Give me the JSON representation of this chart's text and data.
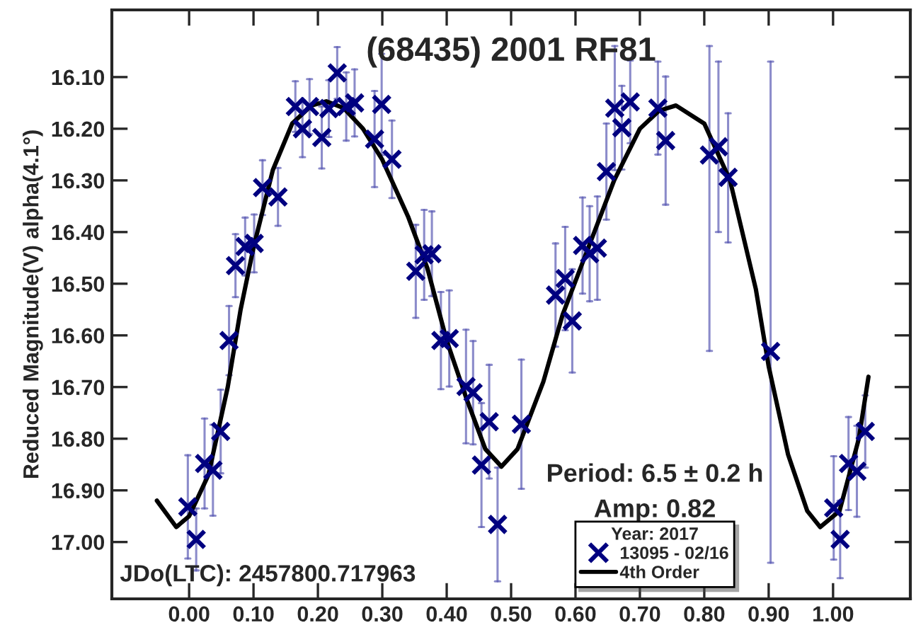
{
  "chart_data": {
    "type": "scatter",
    "title": "(68435) 2001 RF81",
    "ylabel": "Reduced Magnitude(V) alpha(4.1°)",
    "legend_title": "Year: 2017",
    "annotations": [
      "JDo(LTC): 2457800.717963",
      "Period: 6.5 ± 0.2 h",
      "Amp: 0.82"
    ],
    "xlim": [
      -0.12,
      1.12
    ],
    "ylim": [
      17.11,
      15.97
    ],
    "xticks": [
      {
        "value": 0,
        "label": "0.00"
      },
      {
        "value": 0.1,
        "label": "0.10"
      },
      {
        "value": 0.2,
        "label": "0.20"
      },
      {
        "value": 0.3,
        "label": "0.30"
      },
      {
        "value": 0.4,
        "label": "0.40"
      },
      {
        "value": 0.5,
        "label": "0.50"
      },
      {
        "value": 0.6,
        "label": "0.60"
      },
      {
        "value": 0.7,
        "label": "0.70"
      },
      {
        "value": 0.8,
        "label": "0.80"
      },
      {
        "value": 0.9,
        "label": "0.90"
      },
      {
        "value": 1.0,
        "label": "1.00"
      }
    ],
    "yticks": [
      {
        "value": 16.1,
        "label": "16.10"
      },
      {
        "value": 16.2,
        "label": "16.20"
      },
      {
        "value": 16.3,
        "label": "16.30"
      },
      {
        "value": 16.4,
        "label": "16.40"
      },
      {
        "value": 16.5,
        "label": "16.50"
      },
      {
        "value": 16.6,
        "label": "16.60"
      },
      {
        "value": 16.7,
        "label": "16.70"
      },
      {
        "value": 16.8,
        "label": "16.80"
      },
      {
        "value": 16.9,
        "label": "16.90"
      },
      {
        "value": 17.0,
        "label": "17.00"
      }
    ],
    "grid": false,
    "legend": "bottom",
    "series": [
      {
        "name": "13095 - 02/16",
        "color": "#000080",
        "marker": "cross",
        "x": [
          -0.002,
          0.011,
          0.024,
          0.037,
          0.049,
          0.062,
          0.072,
          0.087,
          0.101,
          0.114,
          0.138,
          0.165,
          0.176,
          0.187,
          0.206,
          0.217,
          0.23,
          0.244,
          0.257,
          0.288,
          0.299,
          0.315,
          0.352,
          0.365,
          0.377,
          0.391,
          0.404,
          0.43,
          0.441,
          0.454,
          0.466,
          0.479,
          0.516,
          0.569,
          0.584,
          0.595,
          0.611,
          0.622,
          0.634,
          0.648,
          0.661,
          0.672,
          0.685,
          0.728,
          0.74,
          0.808,
          0.822,
          0.837,
          0.903,
          1.001,
          1.011,
          1.024,
          1.037,
          1.05
        ],
        "values": [
          16.932,
          16.995,
          16.848,
          16.861,
          16.786,
          16.61,
          16.465,
          16.428,
          16.422,
          16.314,
          16.332,
          16.157,
          16.2,
          16.157,
          16.217,
          16.161,
          16.092,
          16.157,
          16.15,
          16.22,
          16.153,
          16.259,
          16.476,
          16.444,
          16.442,
          16.61,
          16.606,
          16.699,
          16.711,
          16.851,
          16.767,
          16.966,
          16.772,
          16.522,
          16.49,
          16.572,
          16.426,
          16.442,
          16.431,
          16.283,
          16.16,
          16.198,
          16.148,
          16.16,
          16.223,
          16.251,
          16.235,
          16.294,
          16.631,
          16.934,
          16.995,
          16.848,
          16.863,
          16.786
        ],
        "errors": [
          0.1,
          0.06,
          0.087,
          0.088,
          0.081,
          0.067,
          0.061,
          0.056,
          0.056,
          0.053,
          0.056,
          0.049,
          0.055,
          0.053,
          0.06,
          0.055,
          0.05,
          0.066,
          0.065,
          0.093,
          0.098,
          0.075,
          0.09,
          0.087,
          0.082,
          0.094,
          0.093,
          0.11,
          0.1,
          0.12,
          0.11,
          0.11,
          0.125,
          0.1,
          0.1,
          0.1,
          0.093,
          0.092,
          0.1,
          0.093,
          0.12,
          0.081,
          0.08,
          0.09,
          0.124,
          [
            16.04,
            16.63
          ],
          [
            16.07,
            16.4
          ],
          [
            16.17,
            16.42
          ],
          [
            16.07,
            17.04
          ],
          0.1,
          0.075,
          0.09,
          0.088,
          0.07
        ]
      },
      {
        "name": "4th Order",
        "type": "line",
        "color": "#000000",
        "marker": "none",
        "line_style": "solid",
        "x": [
          -0.05,
          -0.02,
          0.0,
          0.03,
          0.06,
          0.08,
          0.1,
          0.13,
          0.16,
          0.19,
          0.213,
          0.24,
          0.27,
          0.3,
          0.34,
          0.37,
          0.4,
          0.43,
          0.46,
          0.485,
          0.51,
          0.55,
          0.58,
          0.62,
          0.66,
          0.7,
          0.73,
          0.756,
          0.8,
          0.84,
          0.88,
          0.9,
          0.93,
          0.96,
          0.98,
          1.01,
          1.04,
          1.055
        ],
        "values": [
          16.92,
          16.971,
          16.95,
          16.87,
          16.7,
          16.55,
          16.43,
          16.28,
          16.19,
          16.155,
          16.147,
          16.16,
          16.2,
          16.26,
          16.37,
          16.47,
          16.61,
          16.72,
          16.82,
          16.854,
          16.82,
          16.69,
          16.56,
          16.43,
          16.3,
          16.2,
          16.165,
          16.155,
          16.19,
          16.3,
          16.51,
          16.66,
          16.83,
          16.94,
          16.971,
          16.94,
          16.8,
          16.68
        ]
      }
    ]
  }
}
